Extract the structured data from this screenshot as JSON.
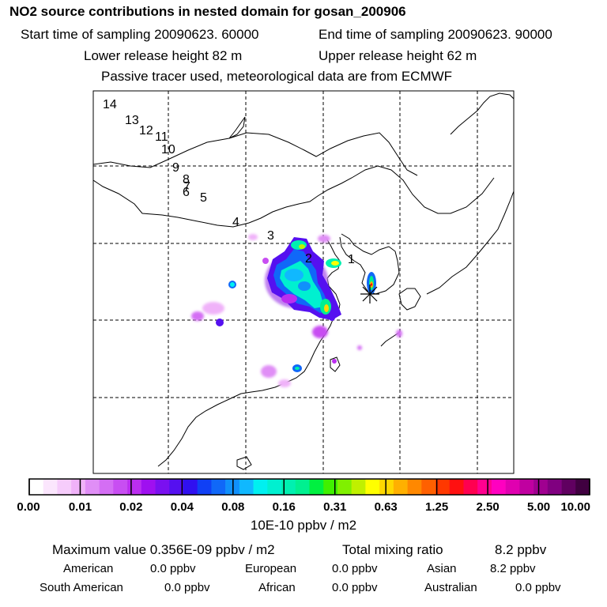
{
  "header": {
    "title": "NO2 source contributions in nested domain for gosan_200906",
    "start_time": "Start time of sampling 20090623. 60000",
    "end_time": "End time of sampling 20090623. 90000",
    "lower_height": "Lower release height   82 m",
    "upper_height": "Upper release height   62 m",
    "tracer_note": "Passive tracer used, meteorological data are from ECMWF"
  },
  "chart_data": {
    "type": "heatmap",
    "title": "NO2 source contributions in nested domain for gosan_200906",
    "colorbar": {
      "tick_labels": [
        "0.00",
        "0.01",
        "0.02",
        "0.04",
        "0.08",
        "0.16",
        "0.31",
        "0.63",
        "1.25",
        "2.50",
        "5.00",
        "10.00"
      ],
      "units": "10E-10 ppbv / m2",
      "colors": [
        "#ffffff",
        "#fbe6fd",
        "#f6ccfb",
        "#f0b2f9",
        "#e08ef6",
        "#d46ef4",
        "#c84ef2",
        "#bb2ef0",
        "#9f10f0",
        "#7a10f0",
        "#5510f0",
        "#3010f0",
        "#1040f5",
        "#1068f8",
        "#1090fb",
        "#10b8fe",
        "#00f0f0",
        "#00f0d0",
        "#00f0b0",
        "#00f090",
        "#00f040",
        "#40f000",
        "#80f000",
        "#c0f000",
        "#ffff00",
        "#ffd800",
        "#ffb000",
        "#ff8800",
        "#ff6000",
        "#ff3800",
        "#ff1010",
        "#ff0050",
        "#ff0090",
        "#ff00c0",
        "#e000b0",
        "#c000a0",
        "#a00090",
        "#800080",
        "#600060",
        "#400040"
      ]
    },
    "trajectory_labels": [
      "1",
      "2",
      "3",
      "4",
      "5",
      "6",
      "7",
      "8",
      "9",
      "10",
      "11",
      "12",
      "13",
      "14"
    ],
    "receptor": "gosan",
    "grid": true,
    "summary": {
      "max_label": "Maximum value  0.356E-09 ppbv / m2",
      "total_label": "Total mixing ratio",
      "total_value": "8.2 ppbv",
      "regions": [
        {
          "name": "American",
          "value": "0.0 ppbv"
        },
        {
          "name": "European",
          "value": "0.0 ppbv"
        },
        {
          "name": "Asian",
          "value": "8.2 ppbv"
        },
        {
          "name": "South American",
          "value": "0.0 ppbv"
        },
        {
          "name": "African",
          "value": "0.0 ppbv"
        },
        {
          "name": "Australian",
          "value": "0.0 ppbv"
        }
      ]
    }
  }
}
